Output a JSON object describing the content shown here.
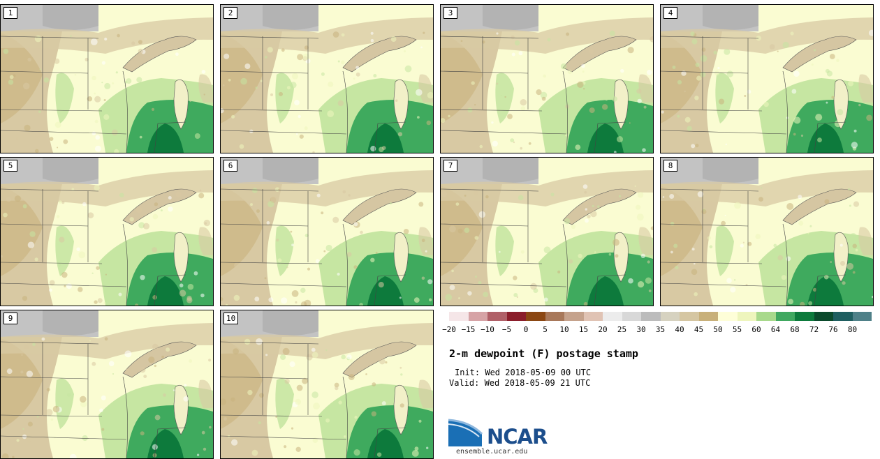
{
  "panels": [
    {
      "label": "1"
    },
    {
      "label": "2"
    },
    {
      "label": "3"
    },
    {
      "label": "4"
    },
    {
      "label": "5"
    },
    {
      "label": "6"
    },
    {
      "label": "7"
    },
    {
      "label": "8"
    },
    {
      "label": "9"
    },
    {
      "label": "10"
    }
  ],
  "colorbar": {
    "colors": [
      "#f5e6e8",
      "#d6a3a6",
      "#b06068",
      "#8b1e2b",
      "#8b4713",
      "#a8785a",
      "#c5a28c",
      "#e0c3b4",
      "#ececec",
      "#d8d8d8",
      "#bcbcbc",
      "#d6d2c0",
      "#d5c6a2",
      "#c8b07a",
      "#fefed8",
      "#eef5bd",
      "#a8d98c",
      "#40a860",
      "#0d7a3c",
      "#0b4a2c",
      "#1f5e60",
      "#4f8088"
    ],
    "ticks": [
      "−20",
      "−15",
      "−10",
      "−5",
      "0",
      "5",
      "10",
      "15",
      "20",
      "25",
      "30",
      "35",
      "40",
      "45",
      "50",
      "55",
      "60",
      "64",
      "68",
      "72",
      "76",
      "80"
    ]
  },
  "title": "2-m dewpoint (F) postage stamp",
  "init": "Init: Wed 2018-05-09 00 UTC",
  "valid": "Valid: Wed 2018-05-09 21 UTC",
  "logo": {
    "text": "NCAR",
    "site": "ensemble.ucar.edu"
  }
}
